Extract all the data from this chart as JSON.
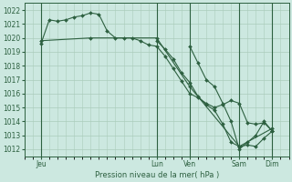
{
  "background_color": "#cce8e0",
  "grid_color": "#aaccbb",
  "line_color": "#2d6040",
  "title": "Pression niveau de la mer( hPa )",
  "ylim": [
    1011.5,
    1022.5
  ],
  "yticks": [
    1012,
    1013,
    1014,
    1015,
    1016,
    1017,
    1018,
    1019,
    1020,
    1021,
    1022
  ],
  "xlim": [
    0,
    192
  ],
  "day_labels": [
    "Jeu",
    "Lun",
    "Ven",
    "Sam",
    "Dim"
  ],
  "day_positions": [
    12,
    96,
    120,
    156,
    180
  ],
  "vline_positions": [
    12,
    96,
    120,
    156,
    180
  ],
  "line1": {
    "x": [
      12,
      18,
      24,
      30,
      36,
      42,
      48,
      54,
      60,
      66,
      72,
      78,
      84,
      90,
      96,
      102,
      108,
      114,
      120,
      126,
      132,
      138,
      144,
      150,
      156,
      162,
      168,
      174,
      180
    ],
    "y": [
      1019.6,
      1021.3,
      1021.2,
      1021.3,
      1021.5,
      1021.6,
      1021.8,
      1021.7,
      1020.5,
      1020.0,
      1020.0,
      1020.0,
      1019.8,
      1019.5,
      1019.4,
      1018.7,
      1017.8,
      1016.9,
      1016.0,
      1015.7,
      1015.3,
      1015.0,
      1015.2,
      1015.5,
      1015.3,
      1013.9,
      1013.8,
      1013.9,
      1013.3
    ]
  },
  "line2": {
    "x": [
      12,
      48,
      96,
      120,
      156,
      180
    ],
    "y": [
      1019.8,
      1020.0,
      1020.0,
      1016.5,
      1012.2,
      1013.5
    ]
  },
  "line3": {
    "x": [
      96,
      102,
      108,
      114,
      120,
      126,
      132,
      138,
      144,
      150,
      156,
      162,
      168,
      174,
      180
    ],
    "y": [
      1019.8,
      1019.2,
      1018.5,
      1017.5,
      1016.8,
      1015.8,
      1015.2,
      1014.8,
      1013.8,
      1012.5,
      1012.2,
      1012.3,
      1012.2,
      1012.8,
      1013.3
    ]
  },
  "line4": {
    "x": [
      120,
      126,
      132,
      138,
      144,
      150,
      156,
      162,
      168,
      174,
      180
    ],
    "y": [
      1019.4,
      1018.2,
      1017.0,
      1016.5,
      1015.3,
      1014.0,
      1012.0,
      1012.5,
      1013.0,
      1014.0,
      1013.3
    ]
  }
}
